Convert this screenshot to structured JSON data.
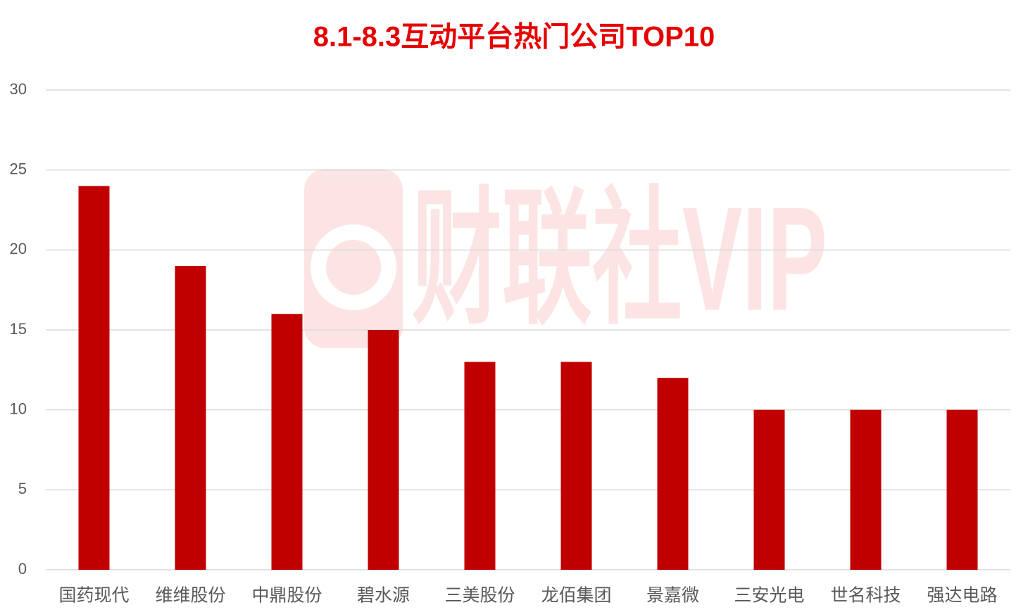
{
  "chart_data": {
    "type": "bar",
    "title": "8.1-8.3互动平台热门公司TOP10",
    "watermark": "财联社VIP",
    "categories": [
      "国药现代",
      "维维股份",
      "中鼎股份",
      "碧水源",
      "三美股份",
      "龙佰集团",
      "景嘉微",
      "三安光电",
      "世名科技",
      "强达电路"
    ],
    "values": [
      24,
      19,
      16,
      15,
      13,
      13,
      12,
      10,
      10,
      10
    ],
    "color": "#c00000",
    "ylim": [
      0,
      30
    ],
    "yticks": [
      0,
      5,
      10,
      15,
      20,
      25,
      30
    ],
    "grid": true
  }
}
